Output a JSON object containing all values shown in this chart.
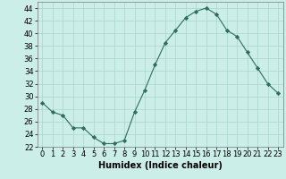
{
  "x": [
    0,
    1,
    2,
    3,
    4,
    5,
    6,
    7,
    8,
    9,
    10,
    11,
    12,
    13,
    14,
    15,
    16,
    17,
    18,
    19,
    20,
    21,
    22,
    23
  ],
  "y": [
    29,
    27.5,
    27,
    25,
    25,
    23.5,
    22.5,
    22.5,
    23,
    27.5,
    31,
    35,
    38.5,
    40.5,
    42.5,
    43.5,
    44,
    43,
    40.5,
    39.5,
    37,
    34.5,
    32,
    30.5
  ],
  "line_color": "#2d6e5e",
  "marker": "D",
  "markersize": 2.2,
  "bg_color": "#cceee8",
  "grid_color": "#aad4cc",
  "xlabel": "Humidex (Indice chaleur)",
  "ylim": [
    22,
    45
  ],
  "xlim": [
    -0.5,
    23.5
  ],
  "yticks": [
    22,
    24,
    26,
    28,
    30,
    32,
    34,
    36,
    38,
    40,
    42,
    44
  ],
  "xticks": [
    0,
    1,
    2,
    3,
    4,
    5,
    6,
    7,
    8,
    9,
    10,
    11,
    12,
    13,
    14,
    15,
    16,
    17,
    18,
    19,
    20,
    21,
    22,
    23
  ],
  "xlabel_fontsize": 7,
  "tick_fontsize": 6
}
